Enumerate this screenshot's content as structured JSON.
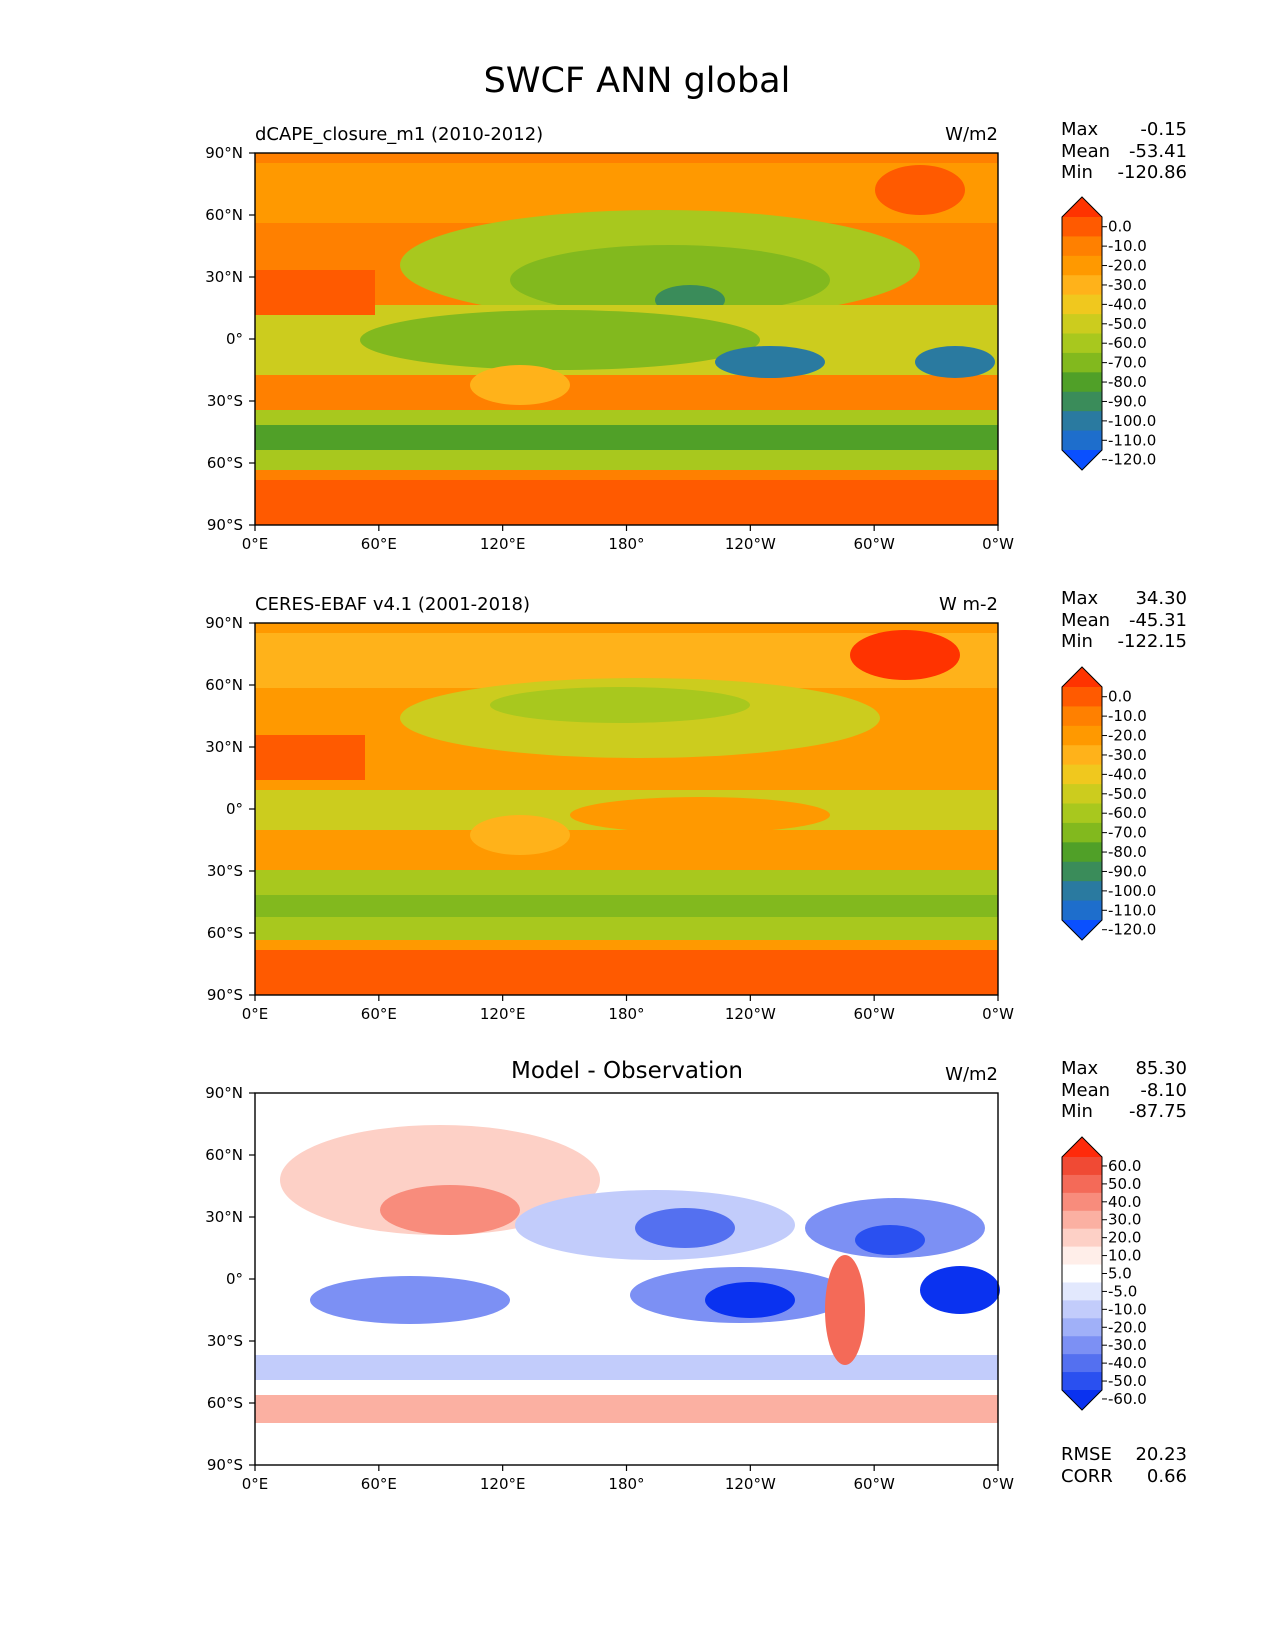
{
  "title": "SWCF ANN global",
  "x_ticks": [
    "0°E",
    "60°E",
    "120°E",
    "180°",
    "120°W",
    "60°W",
    "0°W"
  ],
  "y_ticks": [
    "90°N",
    "60°N",
    "30°N",
    "0°",
    "30°S",
    "60°S",
    "90°S"
  ],
  "stat_labels": {
    "max": "Max",
    "mean": "Mean",
    "min": "Min",
    "rmse": "RMSE",
    "corr": "CORR"
  },
  "panels": [
    {
      "title_left": "dCAPE_closure_m1 (2010-2012)",
      "title_center": "",
      "units": "W/m2",
      "stats": {
        "max": "-0.15",
        "mean": "-53.41",
        "min": "-120.86"
      },
      "colorbar": {
        "labels": [
          "0.0",
          "-10.0",
          "-20.0",
          "-30.0",
          "-40.0",
          "-50.0",
          "-60.0",
          "-70.0",
          "-80.0",
          "-90.0",
          "-100.0",
          "-110.0",
          "-120.0"
        ],
        "colors": [
          "#ff3300",
          "#ff5a00",
          "#ff8000",
          "#ff9900",
          "#ffb21a",
          "#f0c81e",
          "#cccc1e",
          "#a8c81e",
          "#82b91e",
          "#50a028",
          "#3a8c5a",
          "#2a7aa0",
          "#1e6ecc",
          "#0a50ff"
        ]
      }
    },
    {
      "title_left": "CERES-EBAF v4.1 (2001-2018)",
      "title_center": "",
      "units": "W m-2",
      "stats": {
        "max": "34.30",
        "mean": "-45.31",
        "min": "-122.15"
      },
      "colorbar": {
        "labels": [
          "0.0",
          "-10.0",
          "-20.0",
          "-30.0",
          "-40.0",
          "-50.0",
          "-60.0",
          "-70.0",
          "-80.0",
          "-90.0",
          "-100.0",
          "-110.0",
          "-120.0"
        ],
        "colors": [
          "#ff3300",
          "#ff5a00",
          "#ff8000",
          "#ff9900",
          "#ffb21a",
          "#f0c81e",
          "#cccc1e",
          "#a8c81e",
          "#82b91e",
          "#50a028",
          "#3a8c5a",
          "#2a7aa0",
          "#1e6ecc",
          "#0a50ff"
        ]
      }
    },
    {
      "title_left": "",
      "title_center": "Model - Observation",
      "units": "W/m2",
      "stats": {
        "max": "85.30",
        "mean": "-8.10",
        "min": "-87.75",
        "rmse": "20.23",
        "corr": "0.66"
      },
      "colorbar": {
        "labels": [
          "60.0",
          "50.0",
          "40.0",
          "30.0",
          "20.0",
          "10.0",
          "5.0",
          "-5.0",
          "-10.0",
          "-20.0",
          "-30.0",
          "-40.0",
          "-50.0",
          "-60.0"
        ],
        "colors": [
          "#ff2a0a",
          "#f04a34",
          "#f46a58",
          "#f88c7c",
          "#fbb0a2",
          "#fdd0c6",
          "#ffeee9",
          "#ffffff",
          "#e2e8fd",
          "#c2ccfb",
          "#a0b0f8",
          "#7c90f4",
          "#5470f0",
          "#2a50f0",
          "#0a32f0"
        ]
      }
    }
  ]
}
